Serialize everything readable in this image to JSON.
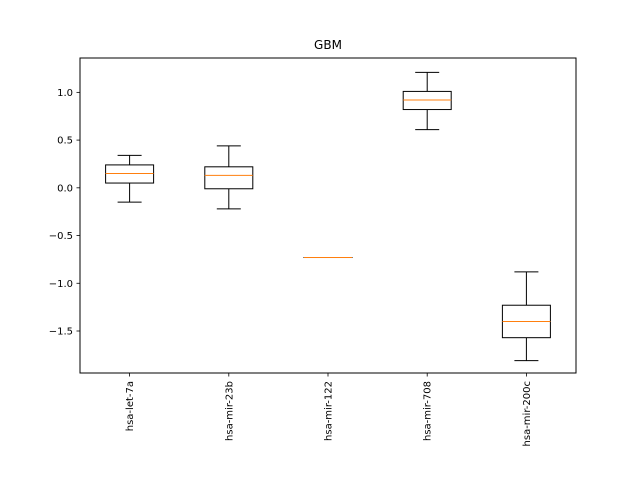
{
  "chart_data": {
    "type": "box",
    "title": "GBM",
    "xlabel": "",
    "ylabel": "",
    "ylim": [
      -1.94,
      1.36
    ],
    "yticks": [
      -1.5,
      -1.0,
      -0.5,
      0.0,
      0.5,
      1.0
    ],
    "ytick_labels": [
      "−1.5",
      "−1.0",
      "−0.5",
      "0.0",
      "0.5",
      "1.0"
    ],
    "categories": [
      "hsa-let-7a",
      "hsa-mir-23b",
      "hsa-mir-122",
      "hsa-mir-708",
      "hsa-mir-200c"
    ],
    "boxes": [
      {
        "name": "hsa-let-7a",
        "whisker_low": -0.15,
        "q1": 0.05,
        "median": 0.15,
        "q3": 0.24,
        "whisker_high": 0.34
      },
      {
        "name": "hsa-mir-23b",
        "whisker_low": -0.22,
        "q1": -0.01,
        "median": 0.13,
        "q3": 0.22,
        "whisker_high": 0.44
      },
      {
        "name": "hsa-mir-122",
        "whisker_low": -0.73,
        "q1": -0.73,
        "median": -0.73,
        "q3": -0.73,
        "whisker_high": -0.73
      },
      {
        "name": "hsa-mir-708",
        "whisker_low": 0.61,
        "q1": 0.82,
        "median": 0.92,
        "q3": 1.01,
        "whisker_high": 1.21
      },
      {
        "name": "hsa-mir-200c",
        "whisker_low": -1.81,
        "q1": -1.57,
        "median": -1.4,
        "q3": -1.23,
        "whisker_high": -0.88
      }
    ],
    "colors": {
      "box": "#000000",
      "median": "#ff7f0e",
      "axes": "#000000",
      "background": "#ffffff"
    }
  }
}
